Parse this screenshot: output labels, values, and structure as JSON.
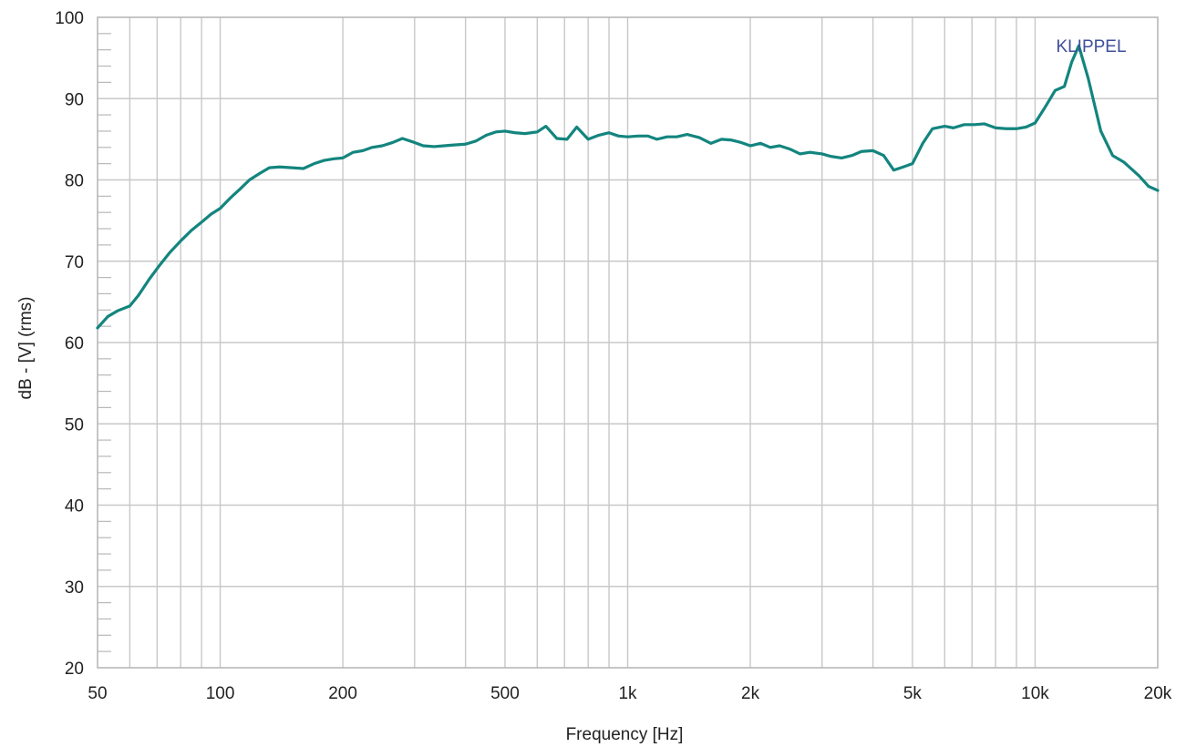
{
  "chart_data": {
    "type": "line",
    "title": "",
    "xlabel": "Frequency [Hz]",
    "ylabel": "dB - [V]  (rms)",
    "x_scale": "log",
    "xlim": [
      50,
      20000
    ],
    "ylim": [
      20,
      100
    ],
    "x_ticks": [
      {
        "value": 50,
        "label": "50"
      },
      {
        "value": 100,
        "label": "100"
      },
      {
        "value": 200,
        "label": "200"
      },
      {
        "value": 500,
        "label": "500"
      },
      {
        "value": 1000,
        "label": "1k"
      },
      {
        "value": 2000,
        "label": "2k"
      },
      {
        "value": 5000,
        "label": "5k"
      },
      {
        "value": 10000,
        "label": "10k"
      },
      {
        "value": 20000,
        "label": "20k"
      }
    ],
    "y_ticks": [
      20,
      30,
      40,
      50,
      60,
      70,
      80,
      90,
      100
    ],
    "grid": true,
    "watermark": "KLIPPEL",
    "series": [
      {
        "color": "#13857e",
        "x": [
          50,
          53,
          56,
          60,
          63,
          67,
          71,
          75,
          80,
          85,
          90,
          95,
          100,
          106,
          112,
          118,
          125,
          132,
          140,
          150,
          160,
          170,
          180,
          190,
          200,
          212,
          224,
          236,
          250,
          265,
          280,
          300,
          315,
          335,
          355,
          375,
          400,
          425,
          450,
          475,
          500,
          530,
          560,
          600,
          630,
          670,
          710,
          750,
          800,
          850,
          900,
          950,
          1000,
          1060,
          1120,
          1180,
          1250,
          1320,
          1400,
          1500,
          1600,
          1700,
          1800,
          1900,
          2000,
          2120,
          2240,
          2360,
          2500,
          2650,
          2800,
          3000,
          3150,
          3350,
          3550,
          3750,
          4000,
          4250,
          4500,
          4750,
          5000,
          5300,
          5600,
          6000,
          6300,
          6700,
          7100,
          7500,
          8000,
          8500,
          9000,
          9500,
          10000,
          10600,
          11200,
          11800,
          12300,
          12800,
          13500,
          14500,
          15500,
          16500,
          18000,
          19000,
          20000
        ],
        "y": [
          61.8,
          63.2,
          63.9,
          64.5,
          65.8,
          67.8,
          69.5,
          71.0,
          72.5,
          73.8,
          74.8,
          75.8,
          76.5,
          77.8,
          78.9,
          80.0,
          80.8,
          81.5,
          81.6,
          81.5,
          81.4,
          82.0,
          82.4,
          82.6,
          82.7,
          83.4,
          83.6,
          84.0,
          84.2,
          84.6,
          85.1,
          84.6,
          84.2,
          84.1,
          84.2,
          84.3,
          84.4,
          84.8,
          85.5,
          85.9,
          86.0,
          85.8,
          85.7,
          85.9,
          86.6,
          85.1,
          85.0,
          86.5,
          85.0,
          85.5,
          85.8,
          85.4,
          85.3,
          85.4,
          85.4,
          85.0,
          85.3,
          85.3,
          85.6,
          85.2,
          84.5,
          85.0,
          84.9,
          84.6,
          84.2,
          84.5,
          84.0,
          84.2,
          83.8,
          83.2,
          83.4,
          83.2,
          82.9,
          82.7,
          83.0,
          83.5,
          83.6,
          83.0,
          81.2,
          81.6,
          82.0,
          84.5,
          86.3,
          86.6,
          86.4,
          86.8,
          86.8,
          86.9,
          86.4,
          86.3,
          86.3,
          86.5,
          87.0,
          89.0,
          91.0,
          91.5,
          94.5,
          96.5,
          92.5,
          86.0,
          83.0,
          82.2,
          80.5,
          79.2,
          78.7
        ]
      }
    ]
  },
  "colors": {
    "line": "#13857e",
    "grid": "#c8c8c8",
    "axis": "#b8b8b8",
    "watermark": "#3f4f9a"
  }
}
